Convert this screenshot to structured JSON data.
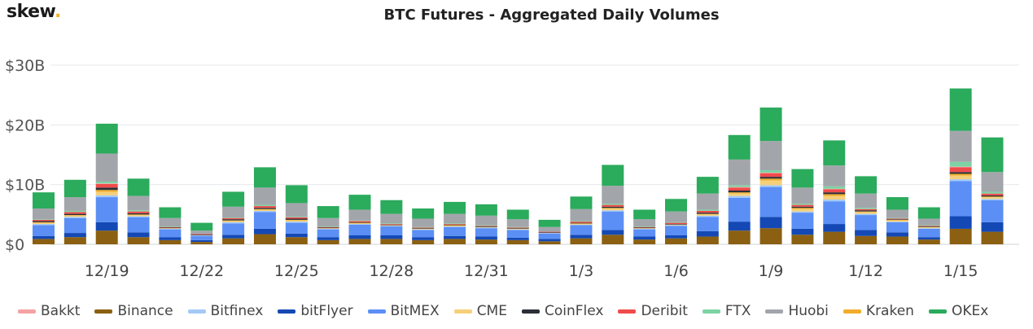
{
  "brand": {
    "name": "skew",
    "dot": "."
  },
  "chart_data": {
    "type": "bar",
    "stacked": true,
    "title": "BTC Futures - Aggregated Daily Volumes",
    "xlabel": "",
    "ylabel": "",
    "ylim": [
      0,
      30
    ],
    "y_ticks": [
      0,
      10,
      20,
      30
    ],
    "y_tick_labels": [
      "$0",
      "$10B",
      "$20B",
      "$30B"
    ],
    "grid": true,
    "legend_position": "bottom",
    "categories": [
      "12/17",
      "12/18",
      "12/19",
      "12/20",
      "12/21",
      "12/22",
      "12/23",
      "12/24",
      "12/25",
      "12/26",
      "12/27",
      "12/28",
      "12/29",
      "12/30",
      "12/31",
      "1/1",
      "1/2",
      "1/3",
      "1/4",
      "1/5",
      "1/6",
      "1/7",
      "1/8",
      "1/9",
      "1/10",
      "1/11",
      "1/12",
      "1/13",
      "1/14",
      "1/15",
      "1/16"
    ],
    "x_tick_labels": [
      "12/19",
      "12/22",
      "12/25",
      "12/28",
      "12/31",
      "1/3",
      "1/6",
      "1/9",
      "1/12",
      "1/15"
    ],
    "series": [
      {
        "name": "Binance",
        "color": "#8b6012",
        "values": [
          0.9,
          1.2,
          2.3,
          1.2,
          0.7,
          0.4,
          1.0,
          1.7,
          1.2,
          0.7,
          0.9,
          0.9,
          0.7,
          0.9,
          0.8,
          0.7,
          0.5,
          1.0,
          1.6,
          0.8,
          1.0,
          1.3,
          2.3,
          2.7,
          1.6,
          2.1,
          1.4,
          1.3,
          0.8,
          2.6,
          2.1
        ]
      },
      {
        "name": "bitFlyer",
        "color": "#1449b5",
        "values": [
          0.5,
          0.7,
          1.4,
          0.8,
          0.5,
          0.3,
          0.6,
          0.9,
          0.6,
          0.5,
          0.6,
          0.6,
          0.5,
          0.5,
          0.5,
          0.4,
          0.4,
          0.6,
          0.8,
          0.5,
          0.5,
          0.9,
          1.5,
          1.9,
          1.0,
          1.3,
          1.0,
          0.7,
          0.4,
          2.1,
          1.6
        ]
      },
      {
        "name": "BitMEX",
        "color": "#5b8ff5",
        "values": [
          1.8,
          2.5,
          4.2,
          2.5,
          1.3,
          0.7,
          1.9,
          2.8,
          1.8,
          1.3,
          1.8,
          1.5,
          1.2,
          1.5,
          1.4,
          1.3,
          0.9,
          1.6,
          3.1,
          1.2,
          1.6,
          2.4,
          4.0,
          5.0,
          2.7,
          3.8,
          2.5,
          1.7,
          1.4,
          5.9,
          3.7
        ]
      },
      {
        "name": "Bitfinex",
        "color": "#a3c9f7",
        "values": [
          0.2,
          0.2,
          0.3,
          0.2,
          0.1,
          0.1,
          0.2,
          0.2,
          0.2,
          0.1,
          0.1,
          0.1,
          0.1,
          0.1,
          0.1,
          0.1,
          0.1,
          0.1,
          0.2,
          0.1,
          0.1,
          0.2,
          0.3,
          0.3,
          0.2,
          0.3,
          0.2,
          0.1,
          0.1,
          0.3,
          0.2
        ]
      },
      {
        "name": "CME",
        "color": "#f5d07a",
        "values": [
          0.2,
          0.2,
          0.6,
          0.2,
          0.1,
          0.0,
          0.2,
          0.2,
          0.2,
          0.1,
          0.1,
          0.1,
          0.1,
          0.1,
          0.1,
          0.1,
          0.0,
          0.1,
          0.3,
          0.1,
          0.1,
          0.2,
          0.4,
          0.8,
          0.4,
          0.6,
          0.3,
          0.2,
          0.2,
          0.6,
          0.3
        ]
      },
      {
        "name": "Kraken",
        "color": "#f0ad2b",
        "values": [
          0.1,
          0.1,
          0.3,
          0.1,
          0.0,
          0.0,
          0.1,
          0.1,
          0.1,
          0.0,
          0.1,
          0.0,
          0.0,
          0.1,
          0.0,
          0.0,
          0.0,
          0.1,
          0.1,
          0.0,
          0.0,
          0.1,
          0.2,
          0.3,
          0.2,
          0.3,
          0.1,
          0.1,
          0.0,
          0.3,
          0.1
        ]
      },
      {
        "name": "CoinFlex",
        "color": "#2b2f36",
        "values": [
          0.2,
          0.2,
          0.4,
          0.2,
          0.1,
          0.1,
          0.2,
          0.2,
          0.2,
          0.1,
          0.1,
          0.1,
          0.1,
          0.1,
          0.1,
          0.1,
          0.1,
          0.1,
          0.2,
          0.1,
          0.1,
          0.2,
          0.3,
          0.3,
          0.2,
          0.3,
          0.2,
          0.1,
          0.1,
          0.3,
          0.2
        ]
      },
      {
        "name": "Deribit",
        "color": "#f04b4b",
        "values": [
          0.2,
          0.3,
          0.6,
          0.3,
          0.1,
          0.1,
          0.2,
          0.3,
          0.2,
          0.1,
          0.2,
          0.1,
          0.1,
          0.1,
          0.1,
          0.1,
          0.1,
          0.2,
          0.3,
          0.1,
          0.2,
          0.3,
          0.5,
          0.6,
          0.3,
          0.5,
          0.2,
          0.1,
          0.1,
          0.8,
          0.3
        ]
      },
      {
        "name": "Bakkt",
        "color": "#f4a3a3",
        "values": [
          0.0,
          0.0,
          0.1,
          0.0,
          0.0,
          0.0,
          0.0,
          0.0,
          0.0,
          0.0,
          0.0,
          0.0,
          0.0,
          0.0,
          0.0,
          0.0,
          0.0,
          0.0,
          0.0,
          0.0,
          0.0,
          0.0,
          0.1,
          0.1,
          0.0,
          0.1,
          0.0,
          0.0,
          0.0,
          0.1,
          0.0
        ]
      },
      {
        "name": "FTX",
        "color": "#7ed3a4",
        "values": [
          0.1,
          0.2,
          0.3,
          0.2,
          0.1,
          0.0,
          0.1,
          0.2,
          0.1,
          0.1,
          0.1,
          0.1,
          0.1,
          0.1,
          0.1,
          0.1,
          0.0,
          0.1,
          0.2,
          0.1,
          0.1,
          0.2,
          0.3,
          0.4,
          0.2,
          0.4,
          0.2,
          0.1,
          0.1,
          0.8,
          0.3
        ]
      },
      {
        "name": "Huobi",
        "color": "#a2a6ab",
        "values": [
          1.8,
          2.3,
          4.7,
          2.4,
          1.4,
          0.6,
          1.8,
          2.9,
          2.3,
          1.4,
          1.8,
          1.6,
          1.4,
          1.6,
          1.6,
          1.3,
          0.8,
          2.0,
          3.0,
          1.2,
          1.8,
          2.7,
          4.3,
          4.9,
          2.7,
          3.5,
          2.4,
          1.4,
          1.1,
          5.2,
          3.3
        ]
      },
      {
        "name": "OKEx",
        "color": "#2bab5c",
        "values": [
          2.7,
          2.9,
          5.0,
          2.9,
          1.8,
          1.3,
          2.5,
          3.4,
          3.0,
          2.0,
          2.5,
          2.3,
          1.7,
          2.0,
          1.9,
          1.6,
          1.2,
          2.1,
          3.5,
          1.6,
          2.1,
          2.8,
          4.1,
          5.6,
          3.1,
          4.2,
          2.9,
          2.1,
          1.9,
          7.1,
          5.8
        ]
      }
    ],
    "legend_order": [
      "Bakkt",
      "Binance",
      "Bitfinex",
      "bitFlyer",
      "BitMEX",
      "CME",
      "CoinFlex",
      "Deribit",
      "FTX",
      "Huobi",
      "Kraken",
      "OKEx"
    ]
  }
}
